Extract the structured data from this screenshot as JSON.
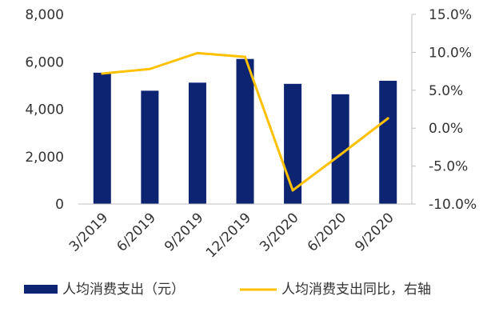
{
  "chart_data": {
    "type": "bar+line",
    "categories": [
      "3/2019",
      "6/2019",
      "9/2019",
      "12/2019",
      "3/2020",
      "6/2020",
      "9/2020"
    ],
    "series": [
      {
        "name": "人均消费支出（元）",
        "type": "bar",
        "axis": "left",
        "color": "#0d2473",
        "values": [
          5540,
          4780,
          5120,
          6120,
          5070,
          4630,
          5200
        ]
      },
      {
        "name": "人均消费支出同比，右轴",
        "type": "line",
        "axis": "right",
        "color": "#ffc000",
        "values": [
          7.2,
          7.8,
          9.9,
          9.4,
          -8.2,
          -3.5,
          1.3
        ]
      }
    ],
    "y_left": {
      "min": 0,
      "max": 8000,
      "ticks": [
        0,
        2000,
        4000,
        6000,
        8000
      ],
      "tick_labels": [
        "0",
        "2,000",
        "4,000",
        "6,000",
        "8,000"
      ]
    },
    "y_right": {
      "min": -10,
      "max": 15,
      "ticks": [
        -10,
        -5,
        0,
        5,
        10,
        15
      ],
      "tick_labels": [
        "-10.0%",
        "-5.0%",
        "0.0%",
        "5.0%",
        "10.0%",
        "15.0%"
      ]
    },
    "grid": false,
    "legend_position": "bottom"
  }
}
